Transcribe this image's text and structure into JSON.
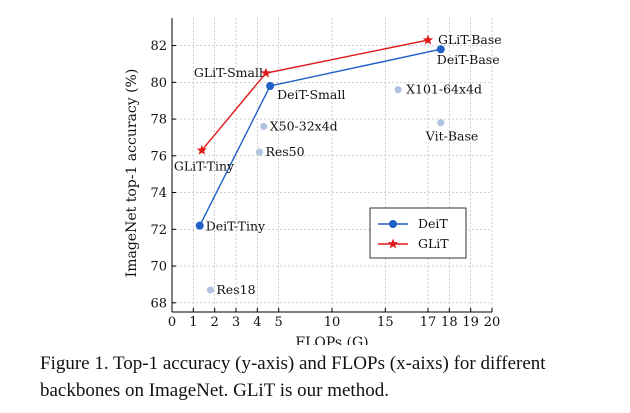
{
  "chart_data": {
    "type": "scatter",
    "xlabel": "FLOPs (G)",
    "ylabel": "ImageNet top-1 accuracy (%)",
    "x_ticks": [
      {
        "value": 0,
        "label": "0"
      },
      {
        "value": 1,
        "label": "1"
      },
      {
        "value": 2,
        "label": "2"
      },
      {
        "value": 3,
        "label": "3"
      },
      {
        "value": 4,
        "label": "4"
      },
      {
        "value": 5,
        "label": "5"
      },
      {
        "value": 10,
        "label": "10"
      },
      {
        "value": 15,
        "label": "15"
      },
      {
        "value": 17,
        "label": "17"
      },
      {
        "value": 18,
        "label": "18"
      },
      {
        "value": 19,
        "label": "19"
      },
      {
        "value": 20,
        "label": "20"
      }
    ],
    "x_scale_segments": [
      [
        0,
        5
      ],
      [
        5,
        15
      ],
      [
        15,
        20
      ]
    ],
    "y_ticks": [
      68,
      70,
      72,
      74,
      76,
      78,
      80,
      82
    ],
    "ylim": [
      67.5,
      83.5
    ],
    "grid": true,
    "series": [
      {
        "name": "DeiT",
        "color": "#1f5fc6",
        "marker": "circle",
        "points": [
          {
            "x": 1.3,
            "y": 72.2,
            "label": "DeiT-Tiny"
          },
          {
            "x": 4.6,
            "y": 79.8,
            "label": "DeiT-Small"
          },
          {
            "x": 17.6,
            "y": 81.8,
            "label": "DeiT-Base"
          }
        ]
      },
      {
        "name": "GLiT",
        "color": "#e01818",
        "marker": "star",
        "points": [
          {
            "x": 1.4,
            "y": 76.3,
            "label": "GLiT-Tiny"
          },
          {
            "x": 4.4,
            "y": 80.5,
            "label": "GLiT-Small"
          },
          {
            "x": 17.0,
            "y": 82.3,
            "label": "GLiT-Base"
          }
        ]
      }
    ],
    "others": {
      "color": "#b0c4e0",
      "points": [
        {
          "x": 1.8,
          "y": 68.7,
          "label": "Res18"
        },
        {
          "x": 4.1,
          "y": 76.2,
          "label": "Res50"
        },
        {
          "x": 4.3,
          "y": 77.6,
          "label": "X50-32x4d"
        },
        {
          "x": 15.6,
          "y": 79.6,
          "label": "X101-64x4d"
        },
        {
          "x": 17.6,
          "y": 77.8,
          "label": "Vit-Base"
        }
      ]
    },
    "legend_position": "lower-right"
  },
  "caption": {
    "line1": "Figure 1. Top-1 accuracy (y-axis) and FLOPs (x-aixs) for different",
    "line2": "backbones on ImageNet. GLiT is our method."
  }
}
